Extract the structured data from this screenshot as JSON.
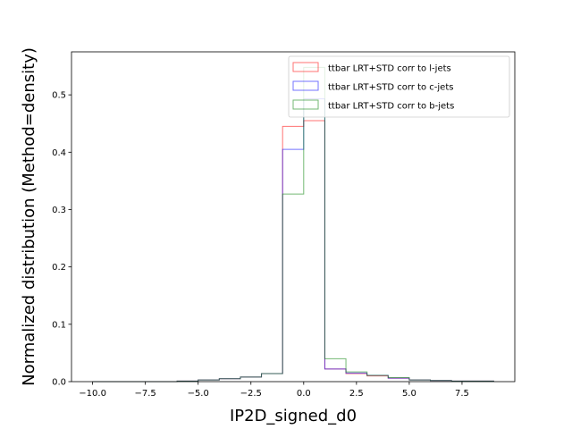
{
  "chart_data": {
    "type": "histogram-step",
    "xlabel": "IP2D_signed_d0",
    "ylabel": "Normalized distribution (Method=density)",
    "xlim": [
      -11,
      10
    ],
    "ylim": [
      0,
      0.575
    ],
    "xticks": [
      -10.0,
      -7.5,
      -5.0,
      -2.5,
      0.0,
      2.5,
      5.0,
      7.5
    ],
    "xtick_labels": [
      "−10.0",
      "−7.5",
      "−5.0",
      "−2.5",
      "0.0",
      "2.5",
      "5.0",
      "7.5"
    ],
    "yticks": [
      0.0,
      0.1,
      0.2,
      0.3,
      0.4,
      0.5
    ],
    "ytick_labels": [
      "0.0",
      "0.1",
      "0.2",
      "0.3",
      "0.4",
      "0.5"
    ],
    "legend_position": "top-right",
    "bin_edges": [
      -10,
      -9,
      -8,
      -7,
      -6,
      -5,
      -4,
      -3,
      -2,
      -1,
      0,
      1,
      2,
      3,
      4,
      5,
      6,
      7,
      8,
      9
    ],
    "series": [
      {
        "name": "ttbar LRT+STD corr to l-jets",
        "color": "#ff0000",
        "values": [
          0.0,
          0.0,
          0.0,
          0.0,
          0.001,
          0.003,
          0.005,
          0.008,
          0.014,
          0.445,
          0.455,
          0.022,
          0.014,
          0.01,
          0.006,
          0.003,
          0.002,
          0.001,
          0.001
        ]
      },
      {
        "name": "ttbar LRT+STD corr to c-jets",
        "color": "#0000ff",
        "values": [
          0.0,
          0.0,
          0.0,
          0.0,
          0.001,
          0.003,
          0.005,
          0.008,
          0.014,
          0.405,
          0.493,
          0.022,
          0.015,
          0.011,
          0.006,
          0.003,
          0.002,
          0.001,
          0.001
        ]
      },
      {
        "name": "ttbar LRT+STD corr to b-jets",
        "color": "#008000",
        "values": [
          0.0,
          0.0,
          0.0,
          0.0,
          0.001,
          0.003,
          0.005,
          0.008,
          0.014,
          0.327,
          0.548,
          0.04,
          0.017,
          0.011,
          0.007,
          0.003,
          0.002,
          0.001,
          0.001
        ]
      }
    ]
  }
}
